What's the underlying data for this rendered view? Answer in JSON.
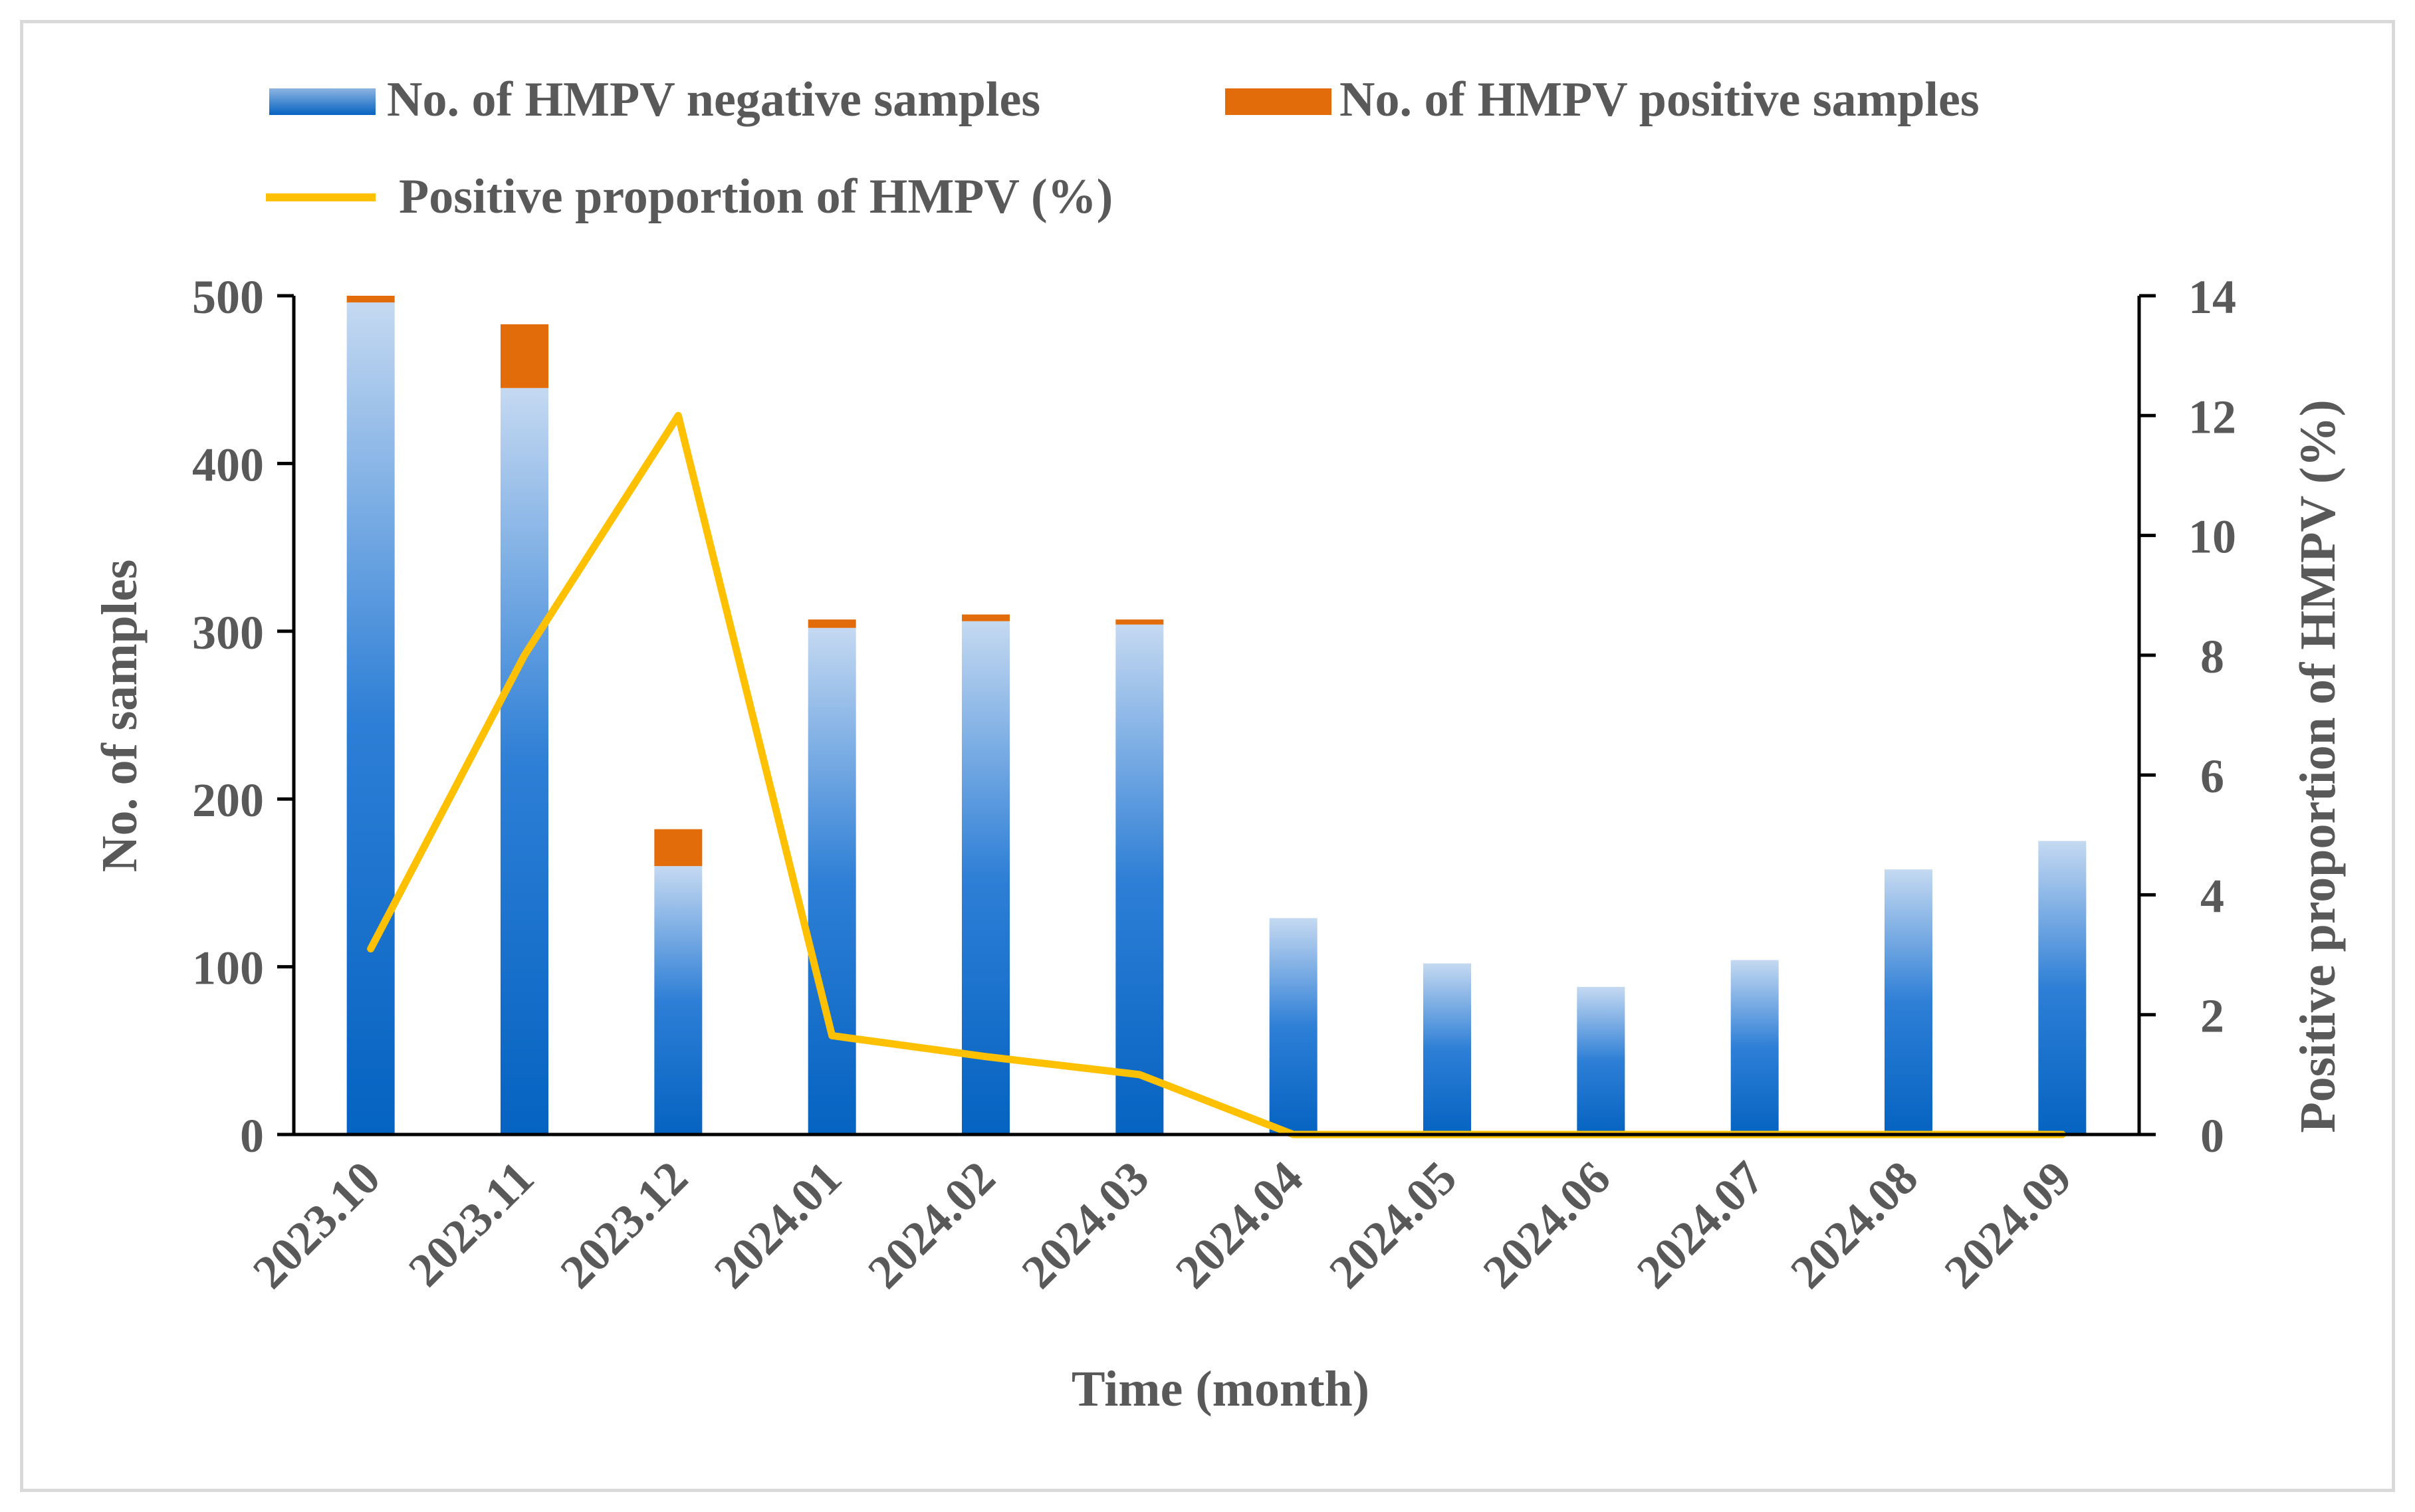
{
  "chart_data": {
    "type": "bar",
    "stacked": true,
    "categories": [
      "2023.10",
      "2023.11",
      "2023.12",
      "2024.01",
      "2024.02",
      "2024.03",
      "2024.04",
      "2024.05",
      "2024.06",
      "2024.07",
      "2024.08",
      "2024.09"
    ],
    "series": [
      {
        "name": "No. of HMPV negative samples",
        "axis": "left",
        "type": "bar",
        "values": [
          496,
          445,
          160,
          302,
          306,
          304,
          129,
          102,
          88,
          104,
          158,
          175
        ]
      },
      {
        "name": "No. of HMPV positive samples",
        "axis": "left",
        "type": "bar",
        "values": [
          4,
          38,
          22,
          5,
          4,
          3,
          0,
          0,
          0,
          0,
          0,
          0
        ]
      },
      {
        "name": "Positive proportion of HMPV (%)",
        "axis": "right",
        "type": "line",
        "values": [
          3.1,
          8.0,
          12.0,
          1.65,
          1.3,
          1.0,
          0,
          0,
          0,
          0,
          0,
          0
        ]
      }
    ],
    "title": "",
    "xlabel": "Time (month)",
    "ylabel": "No. of  samples",
    "y2label": "Positive proportion of HMPV (%)",
    "ylim": [
      0,
      500
    ],
    "y2lim": [
      0,
      14
    ],
    "yticks": [
      "0",
      "100",
      "200",
      "300",
      "400",
      "500"
    ],
    "y2ticks": [
      "0",
      "2",
      "4",
      "6",
      "8",
      "10",
      "12",
      "14"
    ],
    "grid": false,
    "legend_position": "top-left",
    "colors": {
      "negative_dark": "#0563C1",
      "negative_light": "#C5D9F1",
      "positive": "#E36C0A",
      "line": "#FFC000",
      "axis": "#000000",
      "text": "#595959"
    }
  }
}
